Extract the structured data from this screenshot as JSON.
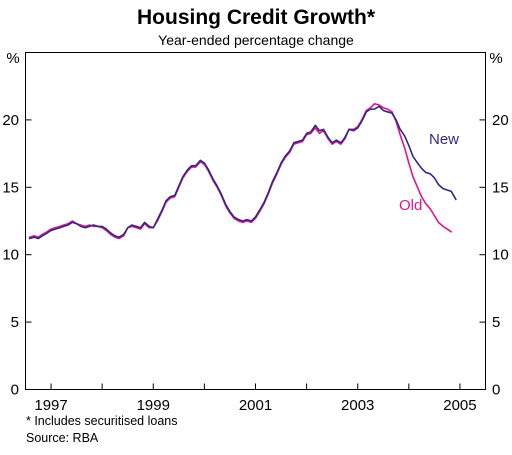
{
  "chart_data": {
    "type": "line",
    "title": "Housing Credit Growth*",
    "subtitle": "Year-ended percentage change",
    "unit_left": "%",
    "unit_right": "%",
    "ylim": [
      0,
      25
    ],
    "yticks": [
      0,
      5,
      10,
      15,
      20
    ],
    "xlim": [
      1996.5,
      2005.5
    ],
    "xticks": [
      {
        "year": 1997,
        "label": "1997"
      },
      {
        "year": 1999,
        "label": "1999"
      },
      {
        "year": 2001,
        "label": "2001"
      },
      {
        "year": 2003,
        "label": "2003"
      },
      {
        "year": 2005,
        "label": "2005"
      }
    ],
    "grid": false,
    "legend": "inline labels",
    "series": [
      {
        "name": "New",
        "color": "#2e2a80",
        "points": [
          [
            1996.58,
            11.2
          ],
          [
            1996.67,
            11.3
          ],
          [
            1996.75,
            11.2
          ],
          [
            1996.83,
            11.4
          ],
          [
            1996.92,
            11.6
          ],
          [
            1997.0,
            11.8
          ],
          [
            1997.08,
            11.9
          ],
          [
            1997.17,
            12.0
          ],
          [
            1997.25,
            12.1
          ],
          [
            1997.33,
            12.2
          ],
          [
            1997.42,
            12.4
          ],
          [
            1997.5,
            12.3
          ],
          [
            1997.58,
            12.1
          ],
          [
            1997.67,
            12.0
          ],
          [
            1997.75,
            12.1
          ],
          [
            1997.83,
            12.2
          ],
          [
            1997.92,
            12.1
          ],
          [
            1998.0,
            12.1
          ],
          [
            1998.08,
            11.9
          ],
          [
            1998.17,
            11.6
          ],
          [
            1998.25,
            11.4
          ],
          [
            1998.33,
            11.3
          ],
          [
            1998.42,
            11.5
          ],
          [
            1998.5,
            12.0
          ],
          [
            1998.58,
            12.2
          ],
          [
            1998.67,
            12.1
          ],
          [
            1998.75,
            12.0
          ],
          [
            1998.83,
            12.4
          ],
          [
            1998.92,
            12.1
          ],
          [
            1999.0,
            12.0
          ],
          [
            1999.08,
            12.6
          ],
          [
            1999.17,
            13.3
          ],
          [
            1999.25,
            14.0
          ],
          [
            1999.33,
            14.3
          ],
          [
            1999.42,
            14.4
          ],
          [
            1999.5,
            15.1
          ],
          [
            1999.58,
            15.8
          ],
          [
            1999.67,
            16.3
          ],
          [
            1999.75,
            16.6
          ],
          [
            1999.83,
            16.6
          ],
          [
            1999.92,
            17.0
          ],
          [
            2000.0,
            16.8
          ],
          [
            2000.08,
            16.3
          ],
          [
            2000.17,
            15.6
          ],
          [
            2000.25,
            15.1
          ],
          [
            2000.33,
            14.5
          ],
          [
            2000.42,
            13.7
          ],
          [
            2000.5,
            13.2
          ],
          [
            2000.58,
            12.8
          ],
          [
            2000.67,
            12.6
          ],
          [
            2000.75,
            12.5
          ],
          [
            2000.83,
            12.6
          ],
          [
            2000.92,
            12.5
          ],
          [
            2001.0,
            12.8
          ],
          [
            2001.08,
            13.3
          ],
          [
            2001.17,
            13.9
          ],
          [
            2001.25,
            14.6
          ],
          [
            2001.33,
            15.4
          ],
          [
            2001.42,
            16.1
          ],
          [
            2001.5,
            16.8
          ],
          [
            2001.58,
            17.3
          ],
          [
            2001.67,
            17.7
          ],
          [
            2001.75,
            18.3
          ],
          [
            2001.83,
            18.4
          ],
          [
            2001.92,
            18.5
          ],
          [
            2002.0,
            19.0
          ],
          [
            2002.08,
            19.1
          ],
          [
            2002.17,
            19.6
          ],
          [
            2002.25,
            19.2
          ],
          [
            2002.33,
            19.3
          ],
          [
            2002.42,
            18.7
          ],
          [
            2002.5,
            18.3
          ],
          [
            2002.58,
            18.5
          ],
          [
            2002.67,
            18.3
          ],
          [
            2002.75,
            18.7
          ],
          [
            2002.83,
            19.3
          ],
          [
            2002.92,
            19.2
          ],
          [
            2003.0,
            19.4
          ],
          [
            2003.08,
            19.9
          ],
          [
            2003.17,
            20.6
          ],
          [
            2003.25,
            20.8
          ],
          [
            2003.33,
            20.8
          ],
          [
            2003.42,
            21.0
          ],
          [
            2003.5,
            20.7
          ],
          [
            2003.58,
            20.6
          ],
          [
            2003.67,
            20.5
          ],
          [
            2003.75,
            20.0
          ],
          [
            2003.83,
            19.3
          ],
          [
            2003.92,
            18.8
          ],
          [
            2004.0,
            18.1
          ],
          [
            2004.08,
            17.3
          ],
          [
            2004.17,
            16.8
          ],
          [
            2004.25,
            16.4
          ],
          [
            2004.33,
            16.1
          ],
          [
            2004.42,
            16.0
          ],
          [
            2004.5,
            15.7
          ],
          [
            2004.58,
            15.2
          ],
          [
            2004.67,
            14.9
          ],
          [
            2004.75,
            14.8
          ],
          [
            2004.83,
            14.7
          ],
          [
            2004.92,
            14.1
          ]
        ]
      },
      {
        "name": "Old",
        "color": "#e0148c",
        "points": [
          [
            1996.58,
            11.3
          ],
          [
            1996.67,
            11.4
          ],
          [
            1996.75,
            11.3
          ],
          [
            1996.83,
            11.5
          ],
          [
            1996.92,
            11.7
          ],
          [
            1997.0,
            11.9
          ],
          [
            1997.08,
            12.0
          ],
          [
            1997.17,
            12.1
          ],
          [
            1997.25,
            12.2
          ],
          [
            1997.33,
            12.3
          ],
          [
            1997.42,
            12.5
          ],
          [
            1997.5,
            12.3
          ],
          [
            1997.58,
            12.2
          ],
          [
            1997.67,
            12.1
          ],
          [
            1997.75,
            12.2
          ],
          [
            1997.83,
            12.1
          ],
          [
            1997.92,
            12.1
          ],
          [
            1998.0,
            12.0
          ],
          [
            1998.08,
            11.8
          ],
          [
            1998.17,
            11.5
          ],
          [
            1998.25,
            11.3
          ],
          [
            1998.33,
            11.2
          ],
          [
            1998.42,
            11.4
          ],
          [
            1998.5,
            12.0
          ],
          [
            1998.58,
            12.1
          ],
          [
            1998.67,
            12.0
          ],
          [
            1998.75,
            11.9
          ],
          [
            1998.83,
            12.3
          ],
          [
            1998.92,
            12.0
          ],
          [
            1999.0,
            12.0
          ],
          [
            1999.08,
            12.5
          ],
          [
            1999.17,
            13.2
          ],
          [
            1999.25,
            13.9
          ],
          [
            1999.33,
            14.2
          ],
          [
            1999.42,
            14.3
          ],
          [
            1999.5,
            15.0
          ],
          [
            1999.58,
            15.7
          ],
          [
            1999.67,
            16.2
          ],
          [
            1999.75,
            16.5
          ],
          [
            1999.83,
            16.5
          ],
          [
            1999.92,
            16.9
          ],
          [
            2000.0,
            16.7
          ],
          [
            2000.08,
            16.2
          ],
          [
            2000.17,
            15.5
          ],
          [
            2000.25,
            15.0
          ],
          [
            2000.33,
            14.4
          ],
          [
            2000.42,
            13.6
          ],
          [
            2000.5,
            13.1
          ],
          [
            2000.58,
            12.7
          ],
          [
            2000.67,
            12.5
          ],
          [
            2000.75,
            12.4
          ],
          [
            2000.83,
            12.5
          ],
          [
            2000.92,
            12.4
          ],
          [
            2001.0,
            12.7
          ],
          [
            2001.08,
            13.2
          ],
          [
            2001.17,
            13.8
          ],
          [
            2001.25,
            14.5
          ],
          [
            2001.33,
            15.3
          ],
          [
            2001.42,
            16.0
          ],
          [
            2001.5,
            16.7
          ],
          [
            2001.58,
            17.2
          ],
          [
            2001.67,
            17.6
          ],
          [
            2001.75,
            18.2
          ],
          [
            2001.83,
            18.3
          ],
          [
            2001.92,
            18.4
          ],
          [
            2002.0,
            18.9
          ],
          [
            2002.08,
            19.0
          ],
          [
            2002.17,
            19.4
          ],
          [
            2002.25,
            19.0
          ],
          [
            2002.33,
            19.2
          ],
          [
            2002.42,
            18.6
          ],
          [
            2002.5,
            18.2
          ],
          [
            2002.58,
            18.4
          ],
          [
            2002.67,
            18.2
          ],
          [
            2002.75,
            18.6
          ],
          [
            2002.83,
            19.3
          ],
          [
            2002.92,
            19.3
          ],
          [
            2003.0,
            19.5
          ],
          [
            2003.08,
            20.0
          ],
          [
            2003.17,
            20.7
          ],
          [
            2003.25,
            20.9
          ],
          [
            2003.33,
            21.2
          ],
          [
            2003.42,
            21.1
          ],
          [
            2003.5,
            20.9
          ],
          [
            2003.58,
            20.8
          ],
          [
            2003.67,
            20.6
          ],
          [
            2003.75,
            19.9
          ],
          [
            2003.83,
            18.9
          ],
          [
            2003.92,
            17.9
          ],
          [
            2004.0,
            16.8
          ],
          [
            2004.08,
            15.8
          ],
          [
            2004.17,
            15.0
          ],
          [
            2004.25,
            14.3
          ],
          [
            2004.33,
            13.8
          ],
          [
            2004.42,
            13.4
          ],
          [
            2004.5,
            12.9
          ],
          [
            2004.58,
            12.4
          ],
          [
            2004.67,
            12.1
          ],
          [
            2004.75,
            11.9
          ],
          [
            2004.83,
            11.7
          ]
        ]
      }
    ],
    "footnotes": [
      "* Includes securitised loans",
      "Source: RBA"
    ]
  }
}
